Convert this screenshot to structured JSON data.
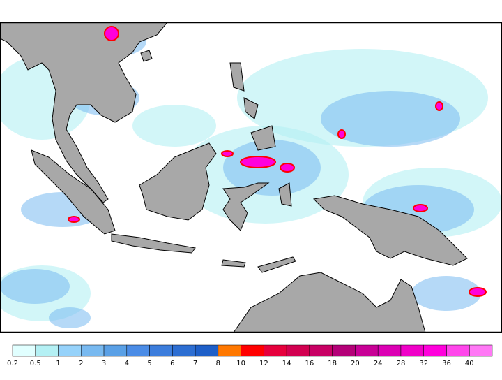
{
  "legend": {
    "labels": [
      "0.2",
      "0.5",
      "1",
      "2",
      "3",
      "4",
      "5",
      "6",
      "7",
      "8",
      "10",
      "12",
      "14",
      "16",
      "18",
      "20",
      "24",
      "28",
      "32",
      "36",
      "40"
    ],
    "colors": [
      "#e1ffff",
      "#b4f0f4",
      "#96d2fa",
      "#78b9f0",
      "#5aa0e6",
      "#4b8ce6",
      "#3c7ddc",
      "#2d6ed2",
      "#1e5fc8",
      "#ff7800",
      "#ff0000",
      "#e6003c",
      "#d20050",
      "#c80064",
      "#b40078",
      "#c80096",
      "#dc00b4",
      "#f000c8",
      "#ff00dc",
      "#ff46eb",
      "#ff78f5"
    ]
  }
}
